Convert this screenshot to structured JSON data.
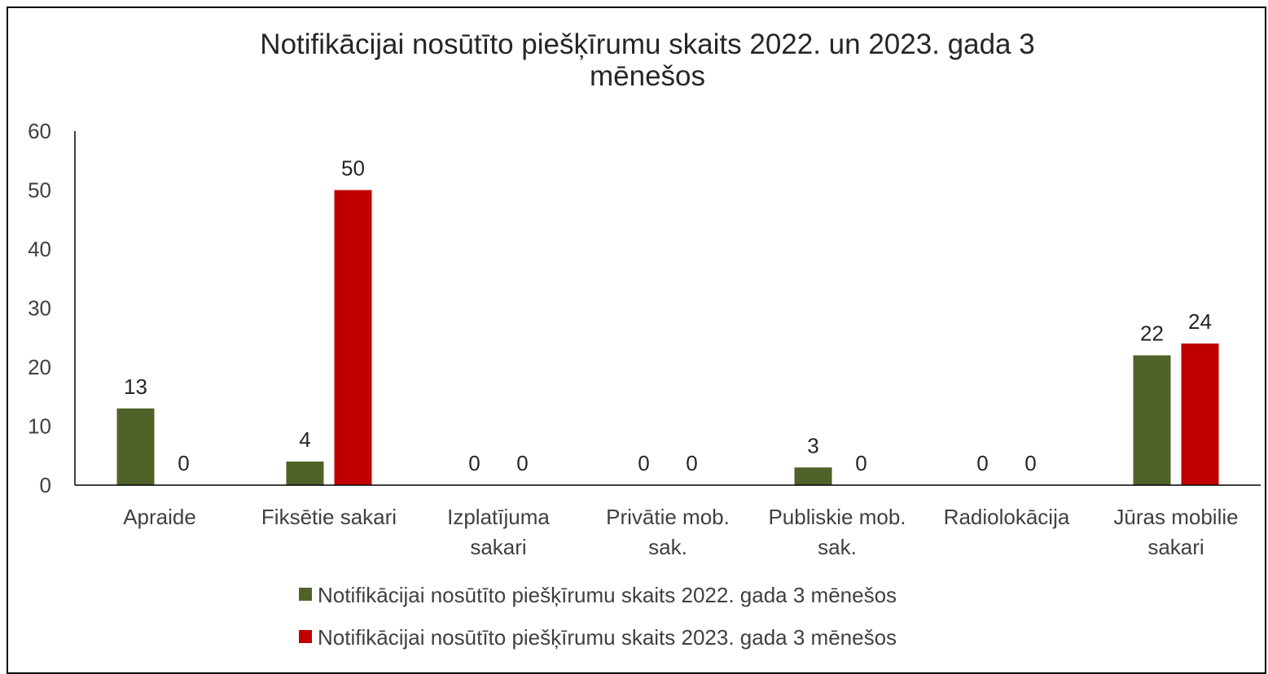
{
  "chart_data": {
    "type": "bar",
    "title": "Notifikācijai nosūtīto piešķīrumu skaits 2022. un 2023. gada 3 mēnešos",
    "title_lines": [
      "Notifikācijai nosūtīto piešķīrumu skaits 2022. un 2023. gada 3",
      "mēnešos"
    ],
    "categories": [
      "Apraide",
      "Fiksētie sakari",
      "Izplatījuma sakari",
      "Privātie mob. sak.",
      "Publiskie mob. sak.",
      "Radiolokācija",
      "Jūras mobilie sakari"
    ],
    "category_lines": [
      [
        "Apraide"
      ],
      [
        "Fiksētie sakari"
      ],
      [
        "Izplatījuma",
        "sakari"
      ],
      [
        "Privātie mob.",
        "sak."
      ],
      [
        "Publiskie mob.",
        "sak."
      ],
      [
        "Radiolokācija"
      ],
      [
        "Jūras mobilie",
        "sakari"
      ]
    ],
    "series": [
      {
        "name": "Notifikācijai nosūtīto piešķīrumu skaits 2022. gada 3 mēnešos",
        "color": "#4F6228",
        "values": [
          13,
          4,
          0,
          0,
          3,
          0,
          22
        ]
      },
      {
        "name": "Notifikācijai nosūtīto piešķīrumu skaits 2023. gada 3 mēnešos",
        "color": "#C00000",
        "values": [
          0,
          50,
          0,
          0,
          0,
          0,
          24
        ]
      }
    ],
    "yticks": [
      "0",
      "10",
      "20",
      "30",
      "40",
      "50",
      "60"
    ],
    "ylim": [
      0,
      60
    ],
    "xlabel": "",
    "ylabel": "",
    "grid": false,
    "legend_position": "bottom",
    "data_labels": true
  }
}
